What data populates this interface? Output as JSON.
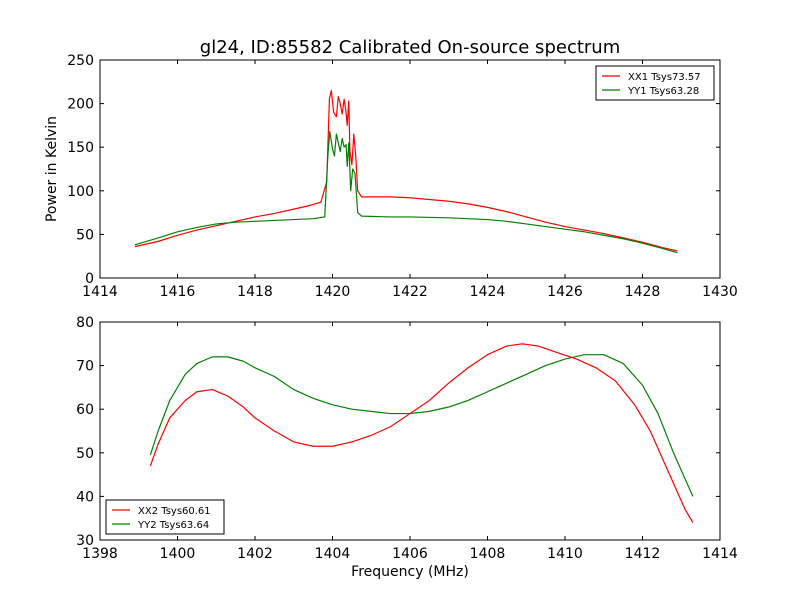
{
  "figure": {
    "title": "gl24, ID:85582 Calibrated On-source spectrum",
    "ylabel": "Power in Kelvin",
    "xlabel": "Frequency (MHz)"
  },
  "chart_data": [
    {
      "type": "line",
      "title": "gl24, ID:85582 Calibrated On-source spectrum",
      "xlabel": "",
      "ylabel": "Power in Kelvin",
      "xlim": [
        1414,
        1430
      ],
      "ylim": [
        0,
        250
      ],
      "xticks": [
        1414,
        1416,
        1418,
        1420,
        1422,
        1424,
        1426,
        1428,
        1430
      ],
      "yticks": [
        0,
        50,
        100,
        150,
        200,
        250
      ],
      "grid": false,
      "legend_position": "top-right",
      "series": [
        {
          "name": "XX1 Tsys73.57",
          "color": "#ff0000",
          "points": [
            [
              1414.9,
              36
            ],
            [
              1415.5,
              42
            ],
            [
              1416,
              49
            ],
            [
              1416.5,
              55
            ],
            [
              1417,
              60
            ],
            [
              1417.5,
              65
            ],
            [
              1418,
              70
            ],
            [
              1418.5,
              74
            ],
            [
              1419,
              79
            ],
            [
              1419.4,
              83
            ],
            [
              1419.7,
              87
            ],
            [
              1419.85,
              110
            ],
            [
              1419.92,
              205
            ],
            [
              1419.97,
              215
            ],
            [
              1420.03,
              190
            ],
            [
              1420.1,
              185
            ],
            [
              1420.15,
              208
            ],
            [
              1420.2,
              200
            ],
            [
              1420.25,
              188
            ],
            [
              1420.3,
              205
            ],
            [
              1420.35,
              190
            ],
            [
              1420.38,
              175
            ],
            [
              1420.42,
              203
            ],
            [
              1420.45,
              145
            ],
            [
              1420.5,
              130
            ],
            [
              1420.55,
              165
            ],
            [
              1420.6,
              140
            ],
            [
              1420.65,
              100
            ],
            [
              1420.75,
              93
            ],
            [
              1421.5,
              93
            ],
            [
              1422,
              92
            ],
            [
              1422.5,
              90
            ],
            [
              1423,
              88
            ],
            [
              1423.5,
              85
            ],
            [
              1424,
              81
            ],
            [
              1424.5,
              76
            ],
            [
              1425,
              70
            ],
            [
              1425.5,
              64
            ],
            [
              1426,
              59
            ],
            [
              1426.5,
              55
            ],
            [
              1427,
              51
            ],
            [
              1427.5,
              46
            ],
            [
              1428,
              41
            ],
            [
              1428.5,
              35
            ],
            [
              1428.9,
              31
            ]
          ]
        },
        {
          "name": "YY1 Tsys63.28",
          "color": "#008000",
          "points": [
            [
              1414.9,
              38
            ],
            [
              1415.5,
              46
            ],
            [
              1416,
              53
            ],
            [
              1416.5,
              58
            ],
            [
              1417,
              62
            ],
            [
              1417.5,
              64
            ],
            [
              1418,
              65
            ],
            [
              1418.5,
              66
            ],
            [
              1419,
              67
            ],
            [
              1419.5,
              68
            ],
            [
              1419.8,
              70
            ],
            [
              1419.88,
              140
            ],
            [
              1419.93,
              168
            ],
            [
              1420,
              148
            ],
            [
              1420.05,
              140
            ],
            [
              1420.1,
              165
            ],
            [
              1420.15,
              155
            ],
            [
              1420.2,
              145
            ],
            [
              1420.25,
              160
            ],
            [
              1420.3,
              150
            ],
            [
              1420.35,
              153
            ],
            [
              1420.38,
              128
            ],
            [
              1420.42,
              155
            ],
            [
              1420.47,
              100
            ],
            [
              1420.52,
              125
            ],
            [
              1420.58,
              120
            ],
            [
              1420.65,
              75
            ],
            [
              1420.75,
              71
            ],
            [
              1421.5,
              70
            ],
            [
              1422,
              70
            ],
            [
              1423,
              69
            ],
            [
              1424,
              67
            ],
            [
              1424.5,
              65
            ],
            [
              1425,
              62
            ],
            [
              1425.5,
              59
            ],
            [
              1426,
              56
            ],
            [
              1426.5,
              53
            ],
            [
              1427,
              49
            ],
            [
              1427.5,
              45
            ],
            [
              1428,
              40
            ],
            [
              1428.5,
              34
            ],
            [
              1428.9,
              29
            ]
          ]
        }
      ]
    },
    {
      "type": "line",
      "title": "",
      "xlabel": "Frequency (MHz)",
      "ylabel": "",
      "xlim": [
        1398,
        1414
      ],
      "ylim": [
        30,
        80
      ],
      "xticks": [
        1398,
        1400,
        1402,
        1404,
        1406,
        1408,
        1410,
        1412,
        1414
      ],
      "yticks": [
        30,
        40,
        50,
        60,
        70,
        80
      ],
      "grid": false,
      "legend_position": "bottom-left",
      "series": [
        {
          "name": "XX2 Tsys60.61",
          "color": "#ff0000",
          "points": [
            [
              1399.3,
              47
            ],
            [
              1399.5,
              52
            ],
            [
              1399.8,
              58
            ],
            [
              1400.2,
              62
            ],
            [
              1400.5,
              64
            ],
            [
              1400.9,
              64.5
            ],
            [
              1401.3,
              63
            ],
            [
              1401.7,
              60.5
            ],
            [
              1402,
              58
            ],
            [
              1402.5,
              55
            ],
            [
              1403,
              52.5
            ],
            [
              1403.5,
              51.5
            ],
            [
              1404,
              51.5
            ],
            [
              1404.5,
              52.5
            ],
            [
              1405,
              54
            ],
            [
              1405.5,
              56
            ],
            [
              1406,
              59
            ],
            [
              1406.5,
              62
            ],
            [
              1407,
              66
            ],
            [
              1407.5,
              69.5
            ],
            [
              1408,
              72.5
            ],
            [
              1408.5,
              74.5
            ],
            [
              1408.9,
              75
            ],
            [
              1409.3,
              74.5
            ],
            [
              1409.8,
              73
            ],
            [
              1410.3,
              71.5
            ],
            [
              1410.8,
              69.5
            ],
            [
              1411.3,
              66.5
            ],
            [
              1411.8,
              61
            ],
            [
              1412.2,
              55
            ],
            [
              1412.6,
              47
            ],
            [
              1412.9,
              41
            ],
            [
              1413.1,
              37
            ],
            [
              1413.3,
              34
            ]
          ]
        },
        {
          "name": "YY2 Tsys63.64",
          "color": "#008000",
          "points": [
            [
              1399.3,
              49.5
            ],
            [
              1399.5,
              55
            ],
            [
              1399.8,
              62
            ],
            [
              1400.2,
              68
            ],
            [
              1400.5,
              70.5
            ],
            [
              1400.9,
              72
            ],
            [
              1401.3,
              72
            ],
            [
              1401.7,
              71
            ],
            [
              1402,
              69.5
            ],
            [
              1402.5,
              67.5
            ],
            [
              1403,
              64.5
            ],
            [
              1403.5,
              62.5
            ],
            [
              1404,
              61
            ],
            [
              1404.5,
              60
            ],
            [
              1405,
              59.5
            ],
            [
              1405.5,
              59
            ],
            [
              1406,
              59
            ],
            [
              1406.5,
              59.5
            ],
            [
              1407,
              60.5
            ],
            [
              1407.5,
              62
            ],
            [
              1408,
              64
            ],
            [
              1408.5,
              66
            ],
            [
              1409,
              68
            ],
            [
              1409.5,
              70
            ],
            [
              1410,
              71.5
            ],
            [
              1410.5,
              72.5
            ],
            [
              1411,
              72.5
            ],
            [
              1411.5,
              70.5
            ],
            [
              1412,
              65.5
            ],
            [
              1412.4,
              59
            ],
            [
              1412.8,
              50
            ],
            [
              1413.1,
              44
            ],
            [
              1413.3,
              40
            ]
          ]
        }
      ]
    }
  ]
}
